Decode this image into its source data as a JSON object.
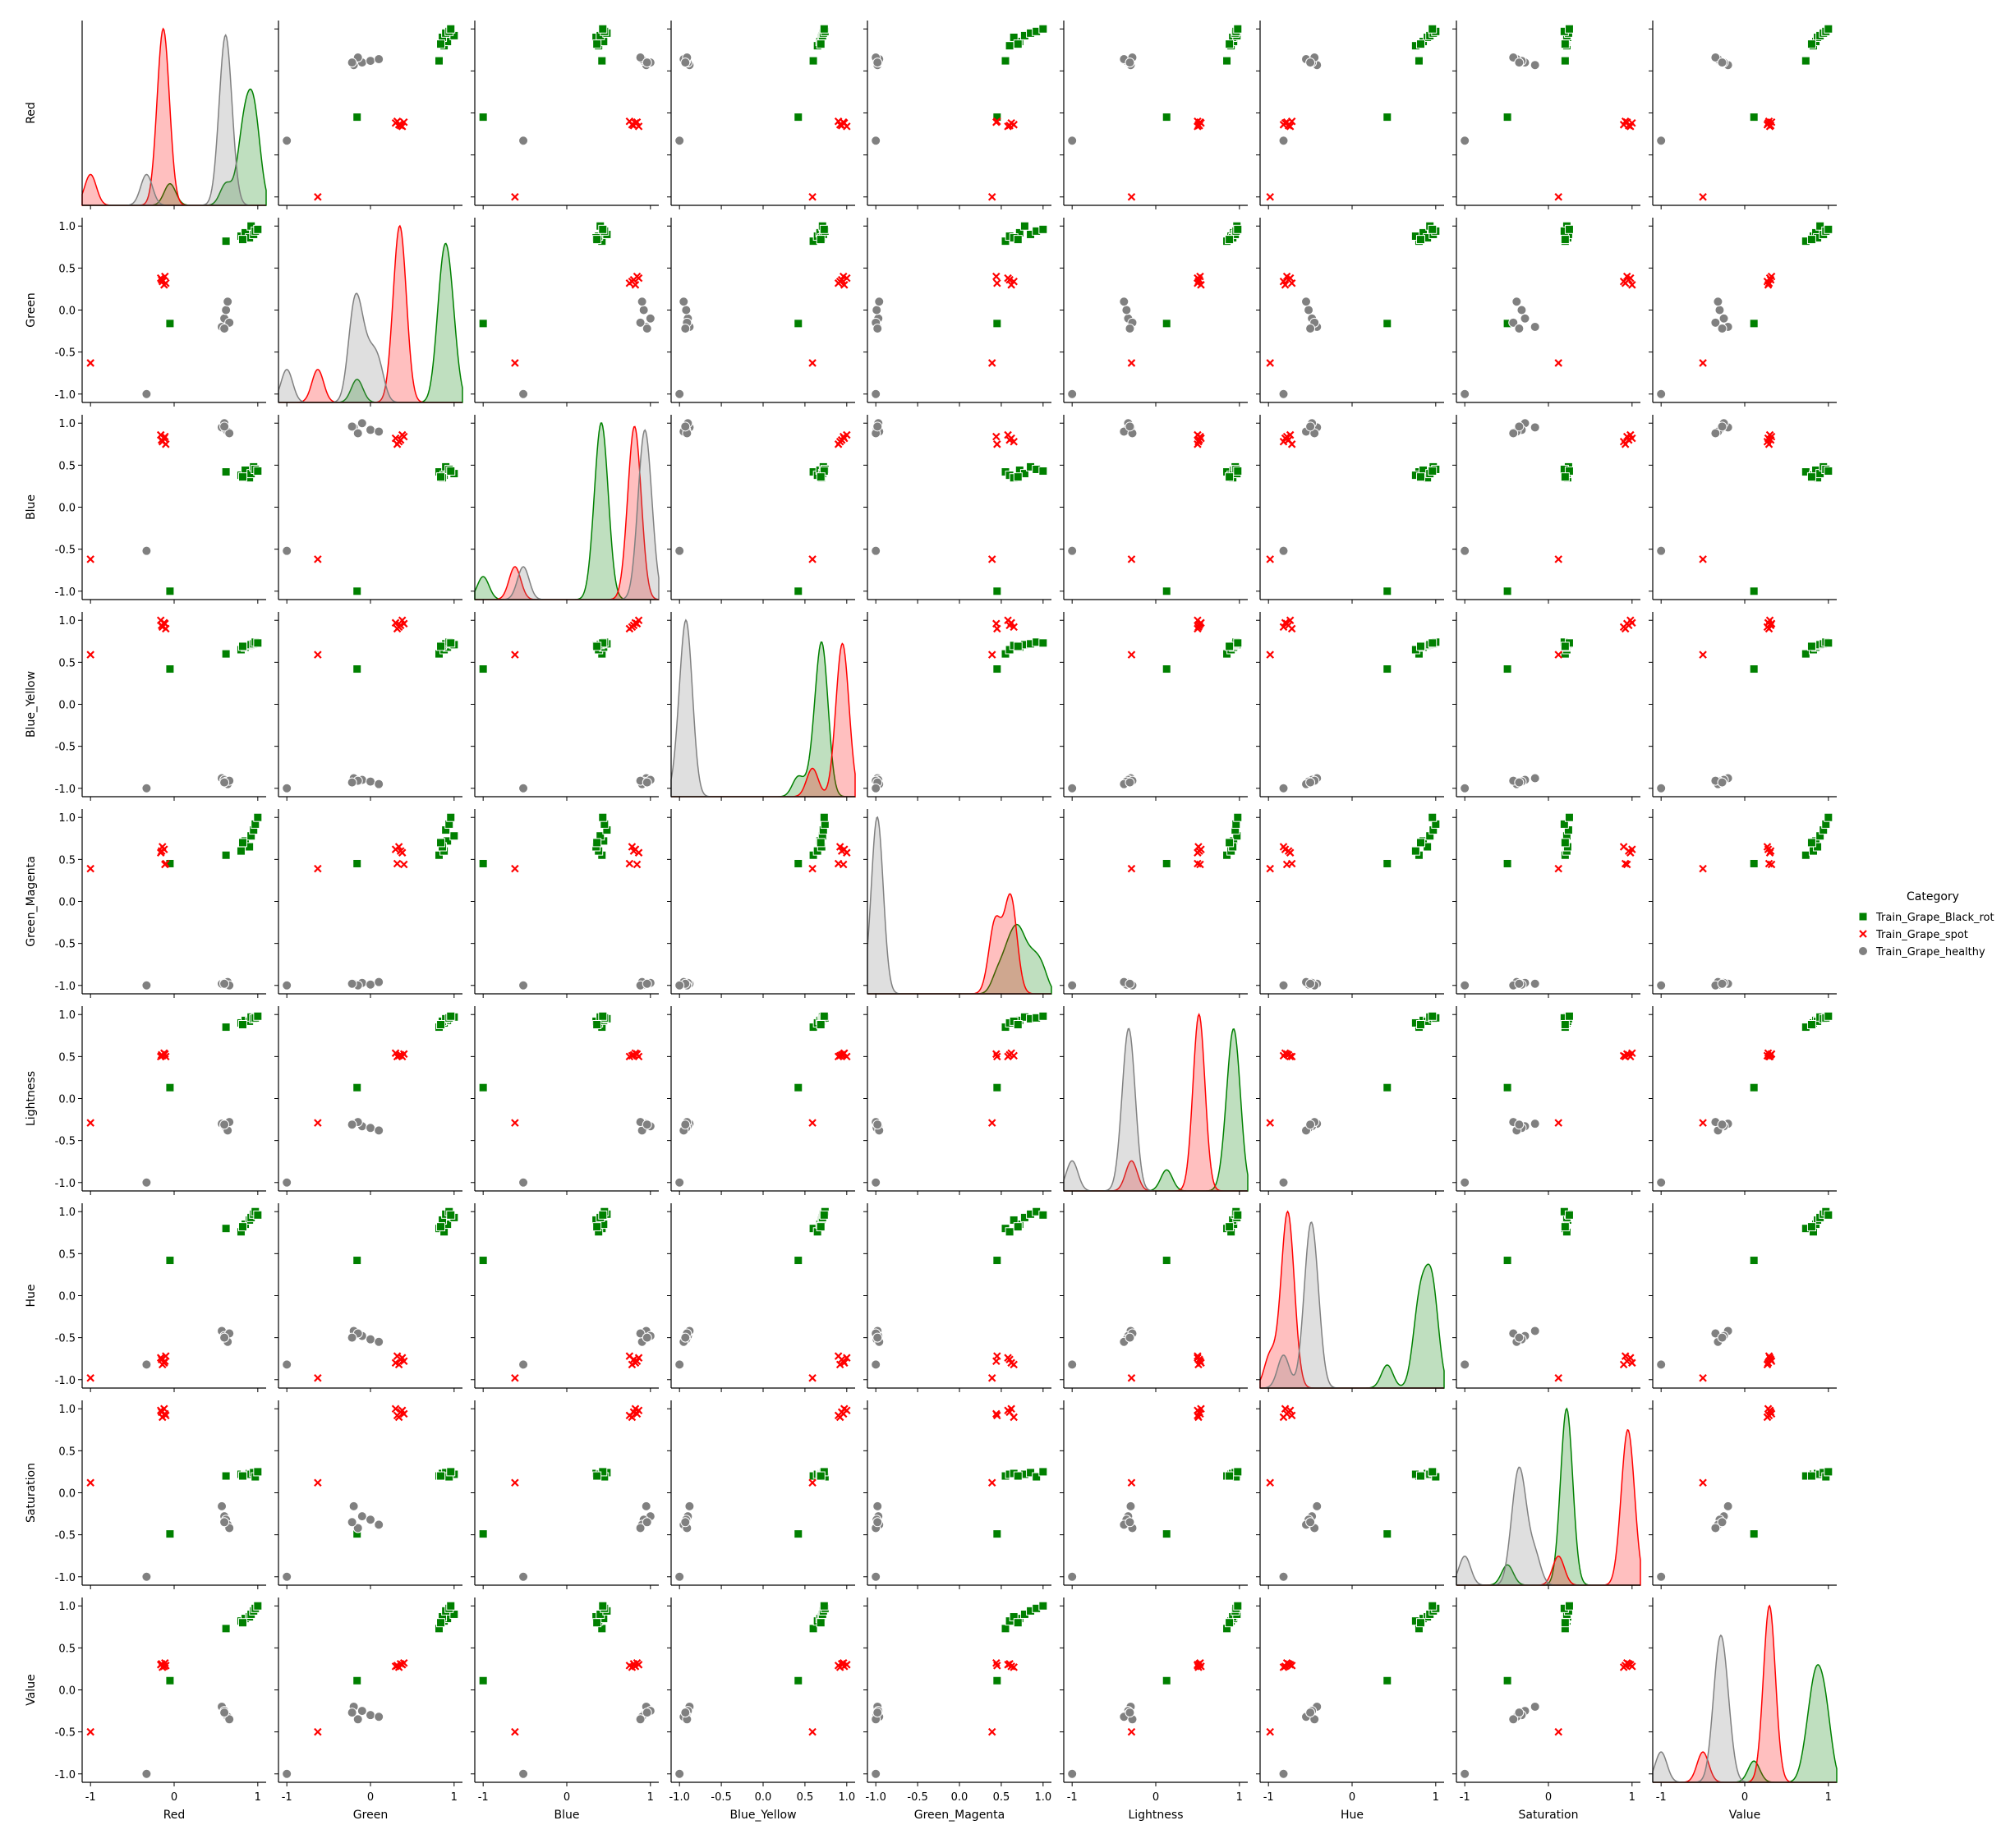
{
  "chart_data": {
    "type": "scatter",
    "title": "",
    "variables": [
      "Red",
      "Green",
      "Blue",
      "Blue_Yellow",
      "Green_Magenta",
      "Lightness",
      "Hue",
      "Saturation",
      "Value"
    ],
    "diagonal": "kde",
    "tick_values": [
      -1.0,
      -0.5,
      0.0,
      0.5,
      1.0
    ],
    "y_tick_labels": [
      "-1.0",
      "-0.5",
      "0.0",
      "0.5",
      "1.0"
    ],
    "x_tick_labels": [
      "-1",
      "0",
      "1"
    ],
    "x_tick_labels_fine": [
      "-1.0",
      "-0.5",
      "0.0",
      "0.5",
      "1.0"
    ],
    "fine_x_tick_variables": [
      "Blue_Yellow",
      "Green_Magenta"
    ],
    "axis_range": [
      -1.1,
      1.1
    ],
    "grid": false,
    "legend": {
      "title": "Category",
      "placement": "center-right",
      "entries": [
        {
          "label": "Train_Grape_Black_rot",
          "color": "#008000",
          "marker": "square"
        },
        {
          "label": "Train_Grape_spot",
          "color": "#ff0000",
          "marker": "x"
        },
        {
          "label": "Train_Grape_healthy",
          "color": "#808080",
          "marker": "circle"
        }
      ]
    },
    "series": [
      {
        "name": "Train_Grape_Black_rot",
        "color": "#008000",
        "marker": "square",
        "points": [
          [
            0.62,
            0.82,
            0.42,
            0.6,
            0.55,
            0.85,
            0.8,
            0.2,
            0.73
          ],
          [
            0.8,
            0.88,
            0.38,
            0.65,
            0.6,
            0.9,
            0.76,
            0.22,
            0.82
          ],
          [
            0.85,
            0.92,
            0.44,
            0.68,
            0.72,
            0.93,
            0.85,
            0.21,
            0.85
          ],
          [
            0.9,
            0.86,
            0.35,
            0.7,
            0.65,
            0.92,
            0.9,
            0.23,
            0.87
          ],
          [
            0.92,
            1.0,
            0.4,
            0.71,
            0.78,
            0.97,
            0.93,
            0.22,
            0.9
          ],
          [
            0.95,
            0.9,
            0.48,
            0.72,
            0.85,
            0.95,
            0.97,
            0.24,
            0.94
          ],
          [
            0.97,
            0.94,
            0.45,
            0.74,
            0.92,
            0.96,
            1.0,
            0.19,
            0.97
          ],
          [
            1.0,
            0.96,
            0.43,
            0.73,
            1.0,
            0.98,
            0.96,
            0.25,
            1.0
          ],
          [
            0.82,
            0.84,
            0.36,
            0.69,
            0.7,
            0.88,
            0.82,
            0.2,
            0.8
          ],
          [
            -0.05,
            -0.16,
            -1.0,
            0.42,
            0.45,
            0.13,
            0.42,
            -0.49,
            0.11
          ]
        ]
      },
      {
        "name": "Train_Grape_spot",
        "color": "#ff0000",
        "marker": "x",
        "points": [
          [
            -0.1,
            0.32,
            0.75,
            0.9,
            0.45,
            0.5,
            -0.72,
            0.92,
            0.29
          ],
          [
            -0.15,
            0.36,
            0.8,
            0.94,
            0.6,
            0.52,
            -0.76,
            0.96,
            0.31
          ],
          [
            -0.12,
            0.3,
            0.82,
            0.97,
            0.62,
            0.54,
            -0.8,
            1.0,
            0.28
          ],
          [
            -0.16,
            0.38,
            0.86,
            1.0,
            0.58,
            0.5,
            -0.74,
            0.98,
            0.3
          ],
          [
            -0.14,
            0.34,
            0.78,
            0.92,
            0.65,
            0.51,
            -0.82,
            0.9,
            0.27
          ],
          [
            -0.11,
            0.4,
            0.84,
            0.96,
            0.44,
            0.53,
            -0.78,
            0.94,
            0.32
          ],
          [
            -1.0,
            -0.63,
            -0.62,
            0.59,
            0.39,
            -0.29,
            -0.98,
            0.12,
            -0.5
          ]
        ]
      },
      {
        "name": "Train_Grape_healthy",
        "color": "#808080",
        "marker": "circle",
        "points": [
          [
            0.57,
            -0.2,
            0.95,
            -0.88,
            -0.98,
            -0.3,
            -0.42,
            -0.16,
            -0.2
          ],
          [
            0.6,
            -0.1,
            1.0,
            -0.9,
            -0.97,
            -0.33,
            -0.48,
            -0.28,
            -0.25
          ],
          [
            0.62,
            0.0,
            0.92,
            -0.92,
            -0.99,
            -0.35,
            -0.52,
            -0.32,
            -0.3
          ],
          [
            0.64,
            0.1,
            0.9,
            -0.95,
            -0.96,
            -0.38,
            -0.55,
            -0.38,
            -0.32
          ],
          [
            0.66,
            -0.15,
            0.88,
            -0.91,
            -1.0,
            -0.28,
            -0.45,
            -0.42,
            -0.35
          ],
          [
            0.6,
            -0.22,
            0.96,
            -0.93,
            -0.98,
            -0.31,
            -0.5,
            -0.35,
            -0.27
          ],
          [
            -0.33,
            -1.0,
            -0.52,
            -1.0,
            -1.0,
            -1.0,
            -0.82,
            -1.0,
            -1.0
          ]
        ]
      }
    ]
  }
}
